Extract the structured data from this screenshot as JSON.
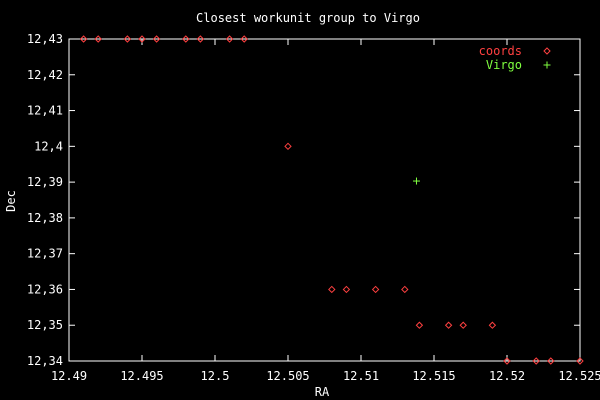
{
  "chart_data": {
    "type": "scatter",
    "title": "Closest workunit group to Virgo",
    "xlabel": "RA",
    "ylabel": "Dec",
    "xlim": [
      12.49,
      12.525
    ],
    "ylim": [
      12.34,
      12.43
    ],
    "x_ticks": [
      "12.49",
      "12.495",
      "12.5",
      "12.505",
      "12.51",
      "12.515",
      "12.52",
      "12.525"
    ],
    "y_ticks": [
      "12,34",
      "12,35",
      "12,36",
      "12,37",
      "12,38",
      "12,39",
      "12,4",
      "12,41",
      "12,42",
      "12,43"
    ],
    "grid": false,
    "legend_position": "top-right",
    "series": [
      {
        "name": "coords",
        "color": "#ff4040",
        "marker": "diamond",
        "points": [
          [
            12.491,
            12.43
          ],
          [
            12.492,
            12.43
          ],
          [
            12.494,
            12.43
          ],
          [
            12.495,
            12.43
          ],
          [
            12.496,
            12.43
          ],
          [
            12.498,
            12.43
          ],
          [
            12.499,
            12.43
          ],
          [
            12.501,
            12.43
          ],
          [
            12.502,
            12.43
          ],
          [
            12.505,
            12.4
          ],
          [
            12.508,
            12.36
          ],
          [
            12.509,
            12.36
          ],
          [
            12.511,
            12.36
          ],
          [
            12.513,
            12.36
          ],
          [
            12.514,
            12.35
          ],
          [
            12.516,
            12.35
          ],
          [
            12.517,
            12.35
          ],
          [
            12.519,
            12.35
          ],
          [
            12.52,
            12.34
          ],
          [
            12.522,
            12.34
          ],
          [
            12.523,
            12.34
          ],
          [
            12.525,
            12.34
          ]
        ]
      },
      {
        "name": "Virgo",
        "color": "#80ff40",
        "marker": "plus",
        "points": [
          [
            12.5138,
            12.3903
          ]
        ]
      }
    ]
  }
}
